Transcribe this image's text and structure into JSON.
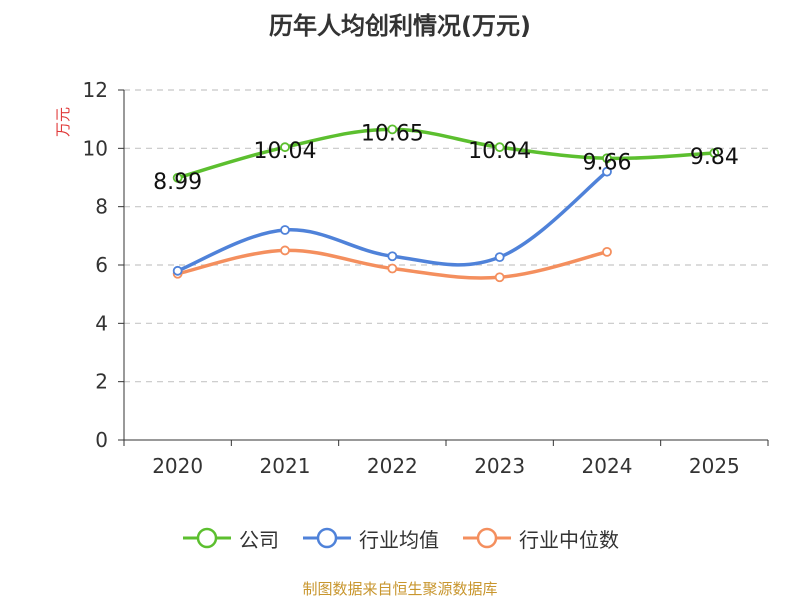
{
  "title": "历年人均创利情况(万元)",
  "source": "制图数据来自恒生聚源数据库",
  "chart_data": {
    "type": "line",
    "title": "历年人均创利情况(万元)",
    "ylabel": "万元",
    "xlabel": "",
    "categories": [
      "2020",
      "2021",
      "2022",
      "2023",
      "2024",
      "2025"
    ],
    "ylim": [
      0,
      12
    ],
    "yticks": [
      0,
      2,
      4,
      6,
      8,
      10,
      12
    ],
    "grid": true,
    "legend_position": "bottom",
    "series": [
      {
        "name": "公司",
        "color": "#5cbf2f",
        "values": [
          8.99,
          10.04,
          10.65,
          10.04,
          9.66,
          9.84
        ],
        "show_labels": true
      },
      {
        "name": "行业均值",
        "color": "#4f82d9",
        "values": [
          5.8,
          7.2,
          6.3,
          6.27,
          9.2,
          null
        ],
        "show_labels": false
      },
      {
        "name": "行业中位数",
        "color": "#f48f5e",
        "values": [
          5.7,
          6.5,
          5.88,
          5.58,
          6.45,
          null
        ],
        "show_labels": false
      }
    ]
  }
}
